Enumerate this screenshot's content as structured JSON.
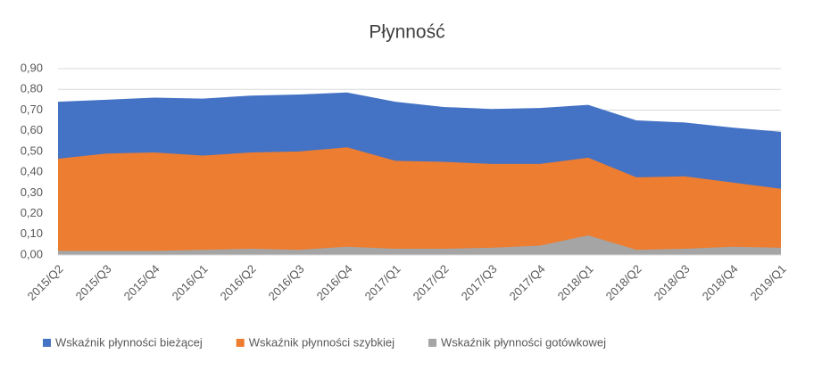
{
  "chart_data": {
    "type": "area",
    "title": "Płynność",
    "categories": [
      "2015/Q2",
      "2015/Q3",
      "2015/Q4",
      "2016/Q1",
      "2016/Q2",
      "2016/Q3",
      "2016/Q4",
      "2017/Q1",
      "2017/Q2",
      "2017/Q3",
      "2017/Q4",
      "2018/Q1",
      "2018/Q2",
      "2018/Q3",
      "2018/Q4",
      "2019/Q1"
    ],
    "series": [
      {
        "name": "Wskaźnik płynności bieżącej",
        "color": "#4472c4",
        "values": [
          0.74,
          0.75,
          0.76,
          0.755,
          0.77,
          0.775,
          0.785,
          0.74,
          0.715,
          0.705,
          0.71,
          0.725,
          0.65,
          0.64,
          0.615,
          0.595
        ]
      },
      {
        "name": "Wskaźnik płynności szybkiej",
        "color": "#ed7d31",
        "values": [
          0.465,
          0.49,
          0.495,
          0.48,
          0.495,
          0.5,
          0.52,
          0.455,
          0.45,
          0.44,
          0.44,
          0.47,
          0.375,
          0.38,
          0.35,
          0.32
        ]
      },
      {
        "name": "Wskaźnik płynności gotówkowej",
        "color": "#a5a5a5",
        "values": [
          0.02,
          0.02,
          0.02,
          0.025,
          0.03,
          0.025,
          0.04,
          0.03,
          0.03,
          0.035,
          0.045,
          0.095,
          0.025,
          0.03,
          0.04,
          0.035
        ]
      }
    ],
    "ylim": [
      0,
      0.9
    ],
    "yticks": [
      {
        "value": 0,
        "label": "0,00"
      },
      {
        "value": 0.1,
        "label": "0,10"
      },
      {
        "value": 0.2,
        "label": "0,20"
      },
      {
        "value": 0.3,
        "label": "0,30"
      },
      {
        "value": 0.4,
        "label": "0,40"
      },
      {
        "value": 0.5,
        "label": "0,50"
      },
      {
        "value": 0.6,
        "label": "0,60"
      },
      {
        "value": 0.7,
        "label": "0,70"
      },
      {
        "value": 0.8,
        "label": "0,80"
      },
      {
        "value": 0.9,
        "label": "0,90"
      }
    ],
    "grid": true,
    "legend": "bottom"
  }
}
